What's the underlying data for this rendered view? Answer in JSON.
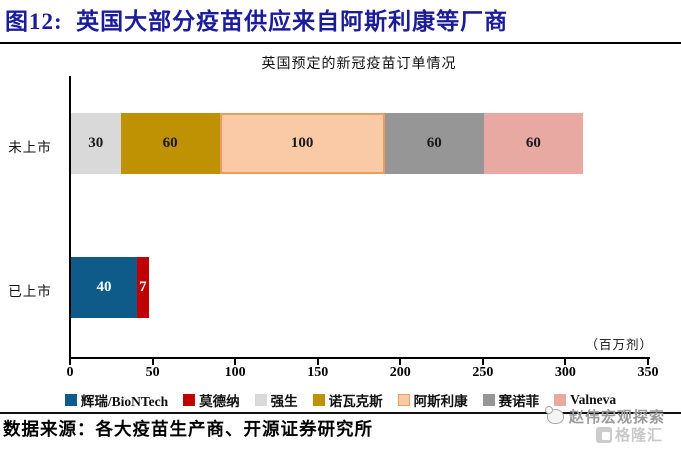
{
  "header": {
    "title": "图12:  英国大部分疫苗供应来自阿斯利康等厂商"
  },
  "chart_data": {
    "type": "bar",
    "orientation": "horizontal",
    "stacked": true,
    "title": "英国预定的新冠疫苗订单情况",
    "unit_label": "（百万剂）",
    "categories": [
      "未上市",
      "已上市"
    ],
    "series": [
      {
        "name": "辉瑞/BioNTech",
        "color": "#0e5a89",
        "label_color": "#ffffff",
        "values": [
          0,
          40
        ]
      },
      {
        "name": "莫德纳",
        "color": "#c00000",
        "label_color": "#ffffff",
        "values": [
          0,
          7
        ]
      },
      {
        "name": "强生",
        "color": "#d9d9d9",
        "label_color": "#1a1a1a",
        "values": [
          30,
          0
        ]
      },
      {
        "name": "诺瓦克斯",
        "color": "#bf9204",
        "label_color": "#1a1a1a",
        "values": [
          60,
          0
        ]
      },
      {
        "name": "阿斯利康",
        "color": "#f9caa5",
        "border": "#ec9c62",
        "label_color": "#1a1a1a",
        "values": [
          100,
          0
        ]
      },
      {
        "name": "赛诺菲",
        "color": "#969696",
        "label_color": "#1a1a1a",
        "values": [
          60,
          0
        ]
      },
      {
        "name": "Valneva",
        "color": "#e7a9a2",
        "label_color": "#1a1a1a",
        "values": [
          60,
          0
        ]
      }
    ],
    "x_ticks": [
      0,
      50,
      100,
      150,
      200,
      250,
      300,
      350
    ],
    "xlim": [
      0,
      350
    ],
    "grid": false,
    "legend_position": "bottom"
  },
  "footer": {
    "source": "数据来源：各大疫苗生产商、开源证券研究所"
  },
  "watermark": {
    "text": "赵伟宏观探索",
    "logo_text": "格隆汇"
  }
}
